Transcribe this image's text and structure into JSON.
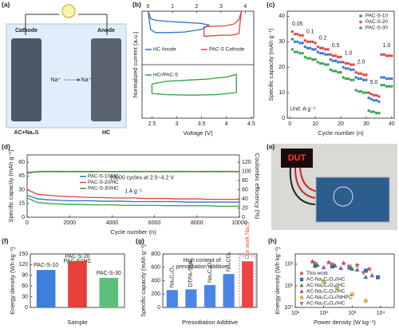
{
  "panel_labels": [
    "(a)",
    "(b)",
    "(c)",
    "(d)",
    "(e)",
    "(f)",
    "(g)",
    "(h)"
  ],
  "schematic": {
    "cathode": "Cathode",
    "anode": "Anode",
    "ion_left": "Na⁺",
    "ion_right": "Na⁺",
    "cathode_material": "AC+Na₂S",
    "anode_material": "HC"
  },
  "photo": {
    "display": "DUT"
  },
  "chart_data": [
    {
      "type": "line",
      "xlabel": "Voltage (V)",
      "ylabel": "Normalized current (a.u.)",
      "xlim": [
        2.3,
        4.55
      ],
      "xticks": [
        2.5,
        3.0,
        3.5,
        4.0,
        4.5
      ],
      "x2lim": [
        -0.25,
        4.35
      ],
      "x2ticks": [
        0,
        1,
        2,
        3,
        4
      ],
      "ylim": [
        0,
        10
      ],
      "series": [
        {
          "name": "HC Anode",
          "color": "#2f6fd6",
          "xaxis": "x2",
          "x": [
            0.02,
            0.1,
            0.3,
            0.8,
            1.5,
            2.2,
            2.5,
            2.2,
            1.5,
            0.8,
            0.3,
            0.1,
            0.02,
            0.02
          ],
          "y": [
            9.6,
            8.3,
            8.0,
            8.0,
            8.05,
            8.3,
            8.7,
            8.85,
            8.95,
            9.05,
            9.15,
            9.3,
            9.9,
            9.6
          ]
        },
        {
          "name": "PAC-S Cathode",
          "color": "#e0403a",
          "x": [
            3.55,
            3.8,
            4.0,
            4.15,
            4.25,
            4.3,
            4.25,
            4.1,
            3.9,
            3.7,
            3.55,
            3.55
          ],
          "y": [
            8.55,
            8.6,
            8.65,
            8.8,
            9.2,
            9.95,
            7.9,
            7.75,
            7.75,
            7.7,
            7.65,
            8.55
          ]
        },
        {
          "name": "HC//PAC-S",
          "color": "#2ea043",
          "x": [
            2.5,
            2.8,
            3.2,
            3.6,
            4.0,
            4.2,
            4.2,
            3.8,
            3.3,
            2.8,
            2.5,
            2.5
          ],
          "y": [
            3.2,
            3.45,
            3.55,
            3.65,
            3.85,
            4.1,
            2.4,
            2.2,
            2.15,
            2.2,
            2.3,
            3.2
          ]
        }
      ]
    },
    {
      "type": "scatter",
      "xlabel": "Cycle number (n)",
      "ylabel": "Specific capacity (mAh g⁻¹)",
      "xlim": [
        -1,
        41
      ],
      "xticks": [
        0,
        10,
        20,
        30,
        40
      ],
      "ylim": [
        0,
        42
      ],
      "yticks": [
        0,
        10,
        20,
        30,
        40
      ],
      "legend": "upper right",
      "annotations": [
        "0.05",
        "0.1",
        "0.2",
        "0.5",
        "1.0",
        "2.0",
        "5.0",
        "1.0",
        "Unit: A g⁻¹"
      ],
      "x": [
        1,
        2,
        3,
        4,
        5,
        6,
        7,
        8,
        9,
        10,
        11,
        12,
        13,
        14,
        15,
        16,
        17,
        18,
        19,
        20,
        21,
        22,
        23,
        24,
        25,
        26,
        27,
        28,
        29,
        30,
        31,
        32,
        33,
        34,
        35,
        36,
        37,
        38,
        39,
        40
      ],
      "series": [
        {
          "name": "PAC-S-10",
          "color": "#3f78d8",
          "values": [
            31,
            30,
            30,
            29.5,
            29.5,
            28,
            27.5,
            27.5,
            27,
            27,
            26,
            25.5,
            25.5,
            25,
            25,
            23,
            22.5,
            22.5,
            22,
            22,
            20,
            19.5,
            19.5,
            19,
            19,
            16,
            15.5,
            15.5,
            15,
            15,
            8,
            7.5,
            7,
            7,
            6.5,
            16,
            16,
            15.5,
            15.5,
            15.5
          ]
        },
        {
          "name": "PAC-S-20",
          "color": "#e8473f",
          "values": [
            34,
            33,
            33,
            32.5,
            32.5,
            30.5,
            30,
            30,
            30,
            29.5,
            28,
            27.5,
            27.5,
            27,
            27,
            25,
            24.5,
            24.5,
            24,
            24,
            22,
            21.5,
            21.5,
            21,
            21,
            18,
            17.5,
            17.5,
            17,
            17,
            10,
            9.5,
            9,
            9,
            8.5,
            25,
            25,
            24.5,
            24.5,
            24.5
          ]
        },
        {
          "name": "PAC-S-30",
          "color": "#3aa655",
          "values": [
            27,
            26,
            26,
            25.5,
            25.5,
            24,
            23.5,
            23.5,
            23,
            23,
            22,
            21.5,
            21.5,
            21,
            21,
            19,
            18.5,
            18.5,
            18,
            18,
            16,
            15.5,
            15.5,
            15,
            15,
            11,
            10.5,
            10.5,
            10,
            10,
            3,
            2.5,
            2.5,
            2,
            2,
            13,
            13,
            12.5,
            12.5,
            12.5
          ]
        }
      ]
    },
    {
      "type": "line",
      "xlabel": "Cycle number (n)",
      "ylabel": "Specific capacity (mAh g⁻¹)",
      "y2label": "Coulombic efficiency (%)",
      "xlim": [
        0,
        10000
      ],
      "xticks": [
        0,
        2000,
        4000,
        6000,
        8000,
        10000
      ],
      "ylim": [
        0,
        68
      ],
      "yticks": [
        0,
        15,
        30,
        45,
        60
      ],
      "y2lim": [
        0,
        136
      ],
      "y2ticks": [
        0,
        20,
        40,
        60,
        80,
        100,
        120
      ],
      "legend": "center left",
      "annotations": [
        "10000 cycles at 2.5~4.2 V",
        "1 A g⁻¹"
      ],
      "x": [
        0,
        500,
        1000,
        1500,
        2000,
        2500,
        3000,
        3500,
        4000,
        4500,
        5000,
        5500,
        6000,
        6500,
        7000,
        7500,
        8000,
        8500,
        9000,
        9500,
        10000
      ],
      "series": [
        {
          "name": "PAC-S-10/HC",
          "color": "#2f6fd6",
          "values": [
            24,
            20,
            19,
            18.5,
            18,
            18,
            18,
            17.5,
            17.5,
            17.5,
            17,
            17,
            17,
            17,
            17,
            16.5,
            16.5,
            16.5,
            16.5,
            16.5,
            16.5
          ]
        },
        {
          "name": "PAC-S-20/HC",
          "color": "#e0403a",
          "values": [
            30,
            25,
            24,
            23,
            22.5,
            22,
            21.5,
            21.5,
            21,
            21,
            21,
            20.5,
            20.5,
            20.5,
            20,
            20,
            20,
            19.5,
            19.5,
            19.5,
            19.5
          ]
        },
        {
          "name": "PAC-S-30/HC",
          "color": "#2ea043",
          "values": [
            21,
            16,
            15,
            14.5,
            14,
            14,
            13.5,
            13.5,
            13.5,
            13,
            13,
            13,
            13,
            12.5,
            12.5,
            12.5,
            12.5,
            12.5,
            12,
            12,
            12
          ]
        },
        {
          "color": "#2f6fd6",
          "axis": "y2",
          "values": [
            97,
            99.4,
            99.8,
            99.5,
            99.7,
            99.9,
            99.5,
            99.8,
            99.6,
            99.9,
            99.5,
            99.8,
            99.6,
            99.9,
            99.5,
            99.8,
            99.6,
            99.9,
            99.5,
            99.8,
            99.6
          ]
        },
        {
          "color": "#e0403a",
          "axis": "y2",
          "values": [
            96,
            99.6,
            99.7,
            99.9,
            99.5,
            99.8,
            99.7,
            99.9,
            99.5,
            99.8,
            99.7,
            99.9,
            99.5,
            99.8,
            99.7,
            99.9,
            99.5,
            99.8,
            99.7,
            99.9,
            99.5
          ]
        },
        {
          "color": "#2ea043",
          "axis": "y2",
          "values": [
            98,
            99.5,
            99.9,
            99.6,
            99.8,
            99.5,
            99.9,
            99.6,
            99.8,
            99.5,
            99.9,
            99.6,
            99.8,
            99.5,
            99.9,
            99.6,
            99.8,
            99.5,
            99.9,
            99.6,
            99.8
          ]
        }
      ]
    },
    {
      "type": "bar",
      "title": "PAC-S//HC",
      "xlabel": "Sample",
      "ylabel": "Energy density (Wh kg⁻¹)",
      "categories": [
        "PAC-S-10",
        "PAC-S-20",
        "PAC-S-30"
      ],
      "values": [
        105,
        130,
        83
      ],
      "colors": [
        "#3d7fd9",
        "#e5403a",
        "#5cc07a"
      ],
      "ylim": [
        0,
        150
      ],
      "yticks": [
        0,
        30,
        60,
        90,
        120,
        150
      ]
    },
    {
      "type": "bar",
      "title": [
        "High content of",
        "presodiation additive"
      ],
      "xlabel": "Presodiation Additive",
      "ylabel": "Specific capacity (mAh g⁻¹)",
      "categories": [
        "Na₂C₂O₄",
        "DTPA-5Na",
        "Na₂C₄O₄",
        "Na₂CO₃",
        "Our work Na₂S"
      ],
      "values": [
        260,
        270,
        335,
        500,
        690
      ],
      "colors": [
        "#4a86e8",
        "#4a86e8",
        "#4a86e8",
        "#4a86e8",
        "#ef4444"
      ],
      "ylim": [
        0,
        800
      ],
      "yticks": [
        0,
        200,
        400,
        600,
        800
      ]
    },
    {
      "type": "scatter",
      "xlabel": "Power density (W kg⁻¹)",
      "ylabel": "Energy density (Wh kg⁻¹)",
      "xscale": "log",
      "yscale": "log",
      "xlim": [
        10,
        30000
      ],
      "xticks": [
        {
          "value": 10,
          "label": "10¹"
        },
        {
          "value": 100,
          "label": "10²"
        },
        {
          "value": 1000,
          "label": "10³"
        },
        {
          "value": 10000,
          "label": "10⁴"
        }
      ],
      "ylim": [
        1,
        300
      ],
      "yticks": [
        {
          "value": 1,
          "label": "10⁰"
        },
        {
          "value": 10,
          "label": "10¹"
        },
        {
          "value": 100,
          "label": "10²"
        }
      ],
      "legend": "lower left",
      "series": [
        {
          "name": "This work",
          "color": "#e8413b",
          "marker": "star",
          "x": [
            40,
            150,
            500,
            1500,
            4000
          ],
          "values": [
            130,
            120,
            110,
            90,
            60
          ]
        },
        {
          "name": "AC-Na₂C₂O₄//HC",
          "color": "#2f6fd6",
          "marker": "square",
          "x": [
            50,
            200,
            800,
            3000,
            8000
          ],
          "values": [
            85,
            80,
            70,
            50,
            25
          ]
        },
        {
          "name": "AC-Na₂C₄O₄//HC",
          "color": "#2ea043",
          "marker": "triangle",
          "x": [
            60,
            250,
            1000,
            3000
          ],
          "values": [
            90,
            85,
            60,
            25
          ]
        },
        {
          "name": "AC-Na₂C₂O₄//HC",
          "color": "#a04bd6",
          "marker": "triangle",
          "x": [
            100,
            400,
            1500,
            5000
          ],
          "values": [
            70,
            65,
            55,
            30
          ]
        },
        {
          "name": "AC-Na₂C₂O₄//NHPC",
          "color": "#f2c230",
          "marker": "circle",
          "x": [
            100,
            300,
            1000,
            3000
          ],
          "values": [
            15,
            8,
            4,
            2
          ]
        },
        {
          "name": "AC-Na₂C₄O₄//HC",
          "color": "#e85aa8",
          "marker": "triangle-down",
          "x": [
            50,
            200,
            800,
            2500
          ],
          "values": [
            110,
            100,
            80,
            40
          ]
        }
      ]
    }
  ]
}
